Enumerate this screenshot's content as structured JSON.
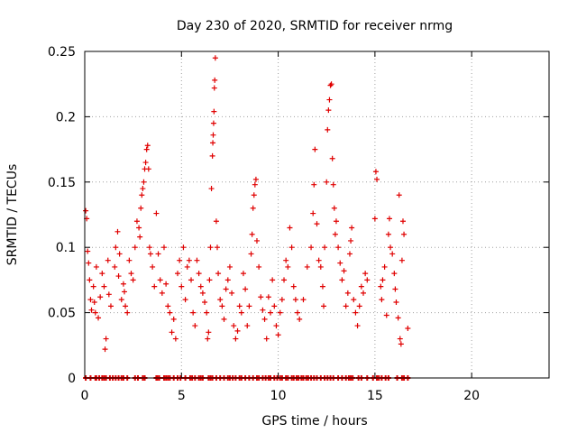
{
  "chart_data": {
    "type": "scatter",
    "title": "Day 230 of 2020, SRMTID for receiver nrmg",
    "xlabel": "GPS time / hours",
    "ylabel": "SRMTID / TECUs",
    "xlim": [
      0,
      24
    ],
    "ylim": [
      0,
      0.25
    ],
    "xticks": [
      0,
      5,
      10,
      15,
      20
    ],
    "yticks": [
      0,
      0.05,
      0.1,
      0.15,
      0.2,
      0.25
    ],
    "ytick_labels": [
      "0",
      "0.05",
      "0.1",
      "0.15",
      "0.2",
      "0.25"
    ],
    "grid": true,
    "marker": "+",
    "color": "#e00000",
    "series": [
      {
        "name": "SRMTID",
        "points": [
          [
            0.05,
            0.128
          ],
          [
            0.1,
            0.122
          ],
          [
            0.15,
            0.097
          ],
          [
            0.2,
            0.088
          ],
          [
            0.25,
            0.075
          ],
          [
            0.3,
            0.06
          ],
          [
            0.35,
            0.052
          ],
          [
            0.45,
            0.07
          ],
          [
            0.5,
            0.058
          ],
          [
            0.55,
            0.05
          ],
          [
            0.6,
            0.085
          ],
          [
            0.7,
            0.046
          ],
          [
            0.8,
            0.062
          ],
          [
            0.9,
            0.08
          ],
          [
            1.0,
            0.07
          ],
          [
            1.05,
            0.022
          ],
          [
            1.1,
            0.03
          ],
          [
            1.2,
            0.09
          ],
          [
            1.25,
            0.064
          ],
          [
            1.35,
            0.055
          ],
          [
            1.55,
            0.085
          ],
          [
            1.6,
            0.1
          ],
          [
            1.7,
            0.112
          ],
          [
            1.75,
            0.078
          ],
          [
            1.8,
            0.095
          ],
          [
            1.9,
            0.06
          ],
          [
            2.0,
            0.072
          ],
          [
            2.05,
            0.066
          ],
          [
            2.1,
            0.055
          ],
          [
            2.2,
            0.05
          ],
          [
            2.3,
            0.09
          ],
          [
            2.4,
            0.08
          ],
          [
            2.5,
            0.075
          ],
          [
            2.6,
            0.1
          ],
          [
            2.7,
            0.12
          ],
          [
            2.8,
            0.115
          ],
          [
            2.85,
            0.108
          ],
          [
            2.9,
            0.13
          ],
          [
            2.95,
            0.14
          ],
          [
            3.0,
            0.145
          ],
          [
            3.05,
            0.15
          ],
          [
            3.1,
            0.16
          ],
          [
            3.15,
            0.165
          ],
          [
            3.2,
            0.175
          ],
          [
            3.25,
            0.178
          ],
          [
            3.3,
            0.16
          ],
          [
            3.35,
            0.1
          ],
          [
            3.4,
            0.095
          ],
          [
            3.5,
            0.085
          ],
          [
            3.6,
            0.07
          ],
          [
            3.7,
            0.126
          ],
          [
            3.8,
            0.095
          ],
          [
            3.9,
            0.075
          ],
          [
            4.0,
            0.065
          ],
          [
            4.1,
            0.1
          ],
          [
            4.2,
            0.072
          ],
          [
            4.3,
            0.055
          ],
          [
            4.4,
            0.05
          ],
          [
            4.5,
            0.035
          ],
          [
            4.6,
            0.045
          ],
          [
            4.7,
            0.03
          ],
          [
            4.8,
            0.08
          ],
          [
            4.9,
            0.09
          ],
          [
            5.0,
            0.07
          ],
          [
            5.1,
            0.1
          ],
          [
            5.2,
            0.06
          ],
          [
            5.3,
            0.085
          ],
          [
            5.4,
            0.09
          ],
          [
            5.5,
            0.075
          ],
          [
            5.6,
            0.05
          ],
          [
            5.7,
            0.04
          ],
          [
            5.8,
            0.09
          ],
          [
            5.9,
            0.08
          ],
          [
            6.0,
            0.07
          ],
          [
            6.1,
            0.065
          ],
          [
            6.2,
            0.058
          ],
          [
            6.3,
            0.05
          ],
          [
            6.35,
            0.03
          ],
          [
            6.4,
            0.035
          ],
          [
            6.45,
            0.075
          ],
          [
            6.5,
            0.1
          ],
          [
            6.55,
            0.145
          ],
          [
            6.6,
            0.17
          ],
          [
            6.62,
            0.18
          ],
          [
            6.64,
            0.186
          ],
          [
            6.66,
            0.195
          ],
          [
            6.68,
            0.204
          ],
          [
            6.7,
            0.222
          ],
          [
            6.72,
            0.228
          ],
          [
            6.75,
            0.245
          ],
          [
            6.8,
            0.12
          ],
          [
            6.85,
            0.1
          ],
          [
            6.9,
            0.08
          ],
          [
            7.0,
            0.06
          ],
          [
            7.1,
            0.055
          ],
          [
            7.2,
            0.045
          ],
          [
            7.3,
            0.068
          ],
          [
            7.4,
            0.075
          ],
          [
            7.5,
            0.085
          ],
          [
            7.6,
            0.065
          ],
          [
            7.7,
            0.04
          ],
          [
            7.8,
            0.03
          ],
          [
            7.9,
            0.036
          ],
          [
            8.0,
            0.055
          ],
          [
            8.1,
            0.05
          ],
          [
            8.2,
            0.08
          ],
          [
            8.3,
            0.068
          ],
          [
            8.4,
            0.04
          ],
          [
            8.5,
            0.055
          ],
          [
            8.6,
            0.095
          ],
          [
            8.65,
            0.11
          ],
          [
            8.7,
            0.13
          ],
          [
            8.75,
            0.14
          ],
          [
            8.8,
            0.148
          ],
          [
            8.85,
            0.152
          ],
          [
            8.9,
            0.105
          ],
          [
            9.0,
            0.085
          ],
          [
            9.1,
            0.062
          ],
          [
            9.2,
            0.052
          ],
          [
            9.3,
            0.045
          ],
          [
            9.4,
            0.03
          ],
          [
            9.5,
            0.062
          ],
          [
            9.6,
            0.05
          ],
          [
            9.7,
            0.075
          ],
          [
            9.8,
            0.055
          ],
          [
            9.9,
            0.04
          ],
          [
            10.0,
            0.033
          ],
          [
            10.1,
            0.05
          ],
          [
            10.2,
            0.06
          ],
          [
            10.3,
            0.075
          ],
          [
            10.4,
            0.09
          ],
          [
            10.5,
            0.085
          ],
          [
            10.6,
            0.115
          ],
          [
            10.7,
            0.1
          ],
          [
            10.8,
            0.07
          ],
          [
            10.9,
            0.06
          ],
          [
            11.0,
            0.05
          ],
          [
            11.1,
            0.045
          ],
          [
            11.3,
            0.06
          ],
          [
            11.5,
            0.085
          ],
          [
            11.7,
            0.1
          ],
          [
            11.8,
            0.126
          ],
          [
            11.85,
            0.148
          ],
          [
            11.9,
            0.175
          ],
          [
            12.0,
            0.118
          ],
          [
            12.1,
            0.09
          ],
          [
            12.2,
            0.085
          ],
          [
            12.3,
            0.07
          ],
          [
            12.35,
            0.055
          ],
          [
            12.4,
            0.1
          ],
          [
            12.5,
            0.15
          ],
          [
            12.55,
            0.19
          ],
          [
            12.6,
            0.205
          ],
          [
            12.65,
            0.213
          ],
          [
            12.7,
            0.224
          ],
          [
            12.75,
            0.225
          ],
          [
            12.8,
            0.168
          ],
          [
            12.85,
            0.148
          ],
          [
            12.9,
            0.13
          ],
          [
            12.95,
            0.11
          ],
          [
            13.0,
            0.12
          ],
          [
            13.1,
            0.1
          ],
          [
            13.2,
            0.088
          ],
          [
            13.3,
            0.075
          ],
          [
            13.4,
            0.082
          ],
          [
            13.5,
            0.055
          ],
          [
            13.6,
            0.065
          ],
          [
            13.7,
            0.095
          ],
          [
            13.75,
            0.105
          ],
          [
            13.8,
            0.115
          ],
          [
            13.9,
            0.06
          ],
          [
            14.0,
            0.05
          ],
          [
            14.1,
            0.04
          ],
          [
            14.2,
            0.055
          ],
          [
            14.3,
            0.07
          ],
          [
            14.4,
            0.065
          ],
          [
            14.5,
            0.08
          ],
          [
            14.6,
            0.075
          ],
          [
            15.0,
            0.122
          ],
          [
            15.05,
            0.158
          ],
          [
            15.1,
            0.152
          ],
          [
            15.3,
            0.07
          ],
          [
            15.35,
            0.06
          ],
          [
            15.4,
            0.075
          ],
          [
            15.5,
            0.085
          ],
          [
            15.6,
            0.048
          ],
          [
            15.7,
            0.11
          ],
          [
            15.75,
            0.122
          ],
          [
            15.8,
            0.1
          ],
          [
            15.9,
            0.095
          ],
          [
            16.0,
            0.08
          ],
          [
            16.05,
            0.068
          ],
          [
            16.1,
            0.058
          ],
          [
            16.2,
            0.046
          ],
          [
            16.25,
            0.14
          ],
          [
            16.3,
            0.03
          ],
          [
            16.35,
            0.026
          ],
          [
            16.4,
            0.09
          ],
          [
            16.45,
            0.12
          ],
          [
            16.5,
            0.11
          ],
          [
            16.7,
            0.038
          ]
        ]
      }
    ],
    "zero_markers_x": [
      0.05,
      0.3,
      0.55,
      0.6,
      0.75,
      0.9,
      1.0,
      1.1,
      1.3,
      1.45,
      1.6,
      1.75,
      1.9,
      2.0,
      2.2,
      2.6,
      2.75,
      3.0,
      3.1,
      3.7,
      3.75,
      3.85,
      4.1,
      4.2,
      4.3,
      4.4,
      4.6,
      4.8,
      4.95,
      5.2,
      5.45,
      5.55,
      5.7,
      5.9,
      6.0,
      6.1,
      6.4,
      6.5,
      6.6,
      6.8,
      7.0,
      7.2,
      7.4,
      7.5,
      7.65,
      7.8,
      8.0,
      8.1,
      8.3,
      8.5,
      8.7,
      8.9,
      9.0,
      9.2,
      9.35,
      9.5,
      9.6,
      9.8,
      9.95,
      10.1,
      10.2,
      10.4,
      10.5,
      10.7,
      10.8,
      10.95,
      11.05,
      11.2,
      11.3,
      11.45,
      11.55,
      11.7,
      11.85,
      12.0,
      12.2,
      12.4,
      12.55,
      12.7,
      12.85,
      13.1,
      13.3,
      13.5,
      13.65,
      13.75,
      13.85,
      14.15,
      14.3,
      14.6,
      14.9,
      15.1,
      15.2,
      15.35,
      15.55,
      15.7,
      16.15,
      16.4,
      16.5,
      16.7
    ]
  }
}
